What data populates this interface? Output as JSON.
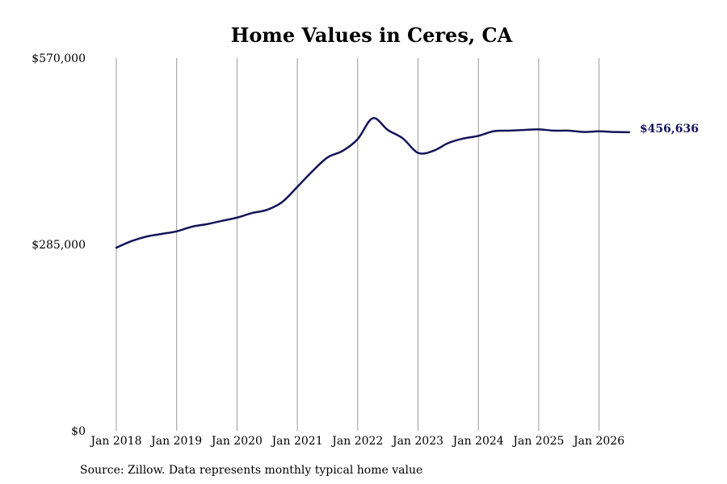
{
  "chart_data": {
    "type": "line",
    "title": "Home Values in Ceres, CA",
    "source_note": "Source: Zillow. Data represents monthly typical home value",
    "ylim": [
      0,
      570000
    ],
    "y_ticks": [
      {
        "value": 0,
        "label": "$0"
      },
      {
        "value": 285000,
        "label": "$285,000"
      },
      {
        "value": 570000,
        "label": "$570,000"
      }
    ],
    "x_ticks": [
      {
        "value": 2018.0,
        "label": "Jan 2018"
      },
      {
        "value": 2019.0,
        "label": "Jan 2019"
      },
      {
        "value": 2020.0,
        "label": "Jan 2020"
      },
      {
        "value": 2021.0,
        "label": "Jan 2021"
      },
      {
        "value": 2022.0,
        "label": "Jan 2022"
      },
      {
        "value": 2023.0,
        "label": "Jan 2023"
      },
      {
        "value": 2024.0,
        "label": "Jan 2024"
      },
      {
        "value": 2025.0,
        "label": "Jan 2025"
      },
      {
        "value": 2026.0,
        "label": "Jan 2026"
      }
    ],
    "xlim": [
      2018.0,
      2026.5
    ],
    "grid": {
      "vertical": true,
      "horizontal": false
    },
    "series": [
      {
        "color": "#14145a",
        "end_label": "$456,636",
        "x": [
          2018.0,
          2018.25,
          2018.5,
          2018.75,
          2019.0,
          2019.25,
          2019.5,
          2019.75,
          2020.0,
          2020.25,
          2020.5,
          2020.75,
          2021.0,
          2021.25,
          2021.5,
          2021.75,
          2022.0,
          2022.25,
          2022.5,
          2022.75,
          2023.0,
          2023.25,
          2023.5,
          2023.75,
          2024.0,
          2024.25,
          2024.5,
          2024.75,
          2025.0,
          2025.25,
          2025.5,
          2025.75,
          2026.0,
          2026.25,
          2026.5
        ],
        "values": [
          280000,
          290000,
          297000,
          301000,
          305000,
          312000,
          316000,
          321000,
          326000,
          333000,
          338000,
          350000,
          373000,
          397000,
          418000,
          428000,
          446000,
          478000,
          460000,
          447000,
          425000,
          428000,
          440000,
          447000,
          451000,
          458000,
          459000,
          460000,
          461000,
          459000,
          459000,
          457000,
          458000,
          457000,
          456636
        ]
      }
    ]
  }
}
